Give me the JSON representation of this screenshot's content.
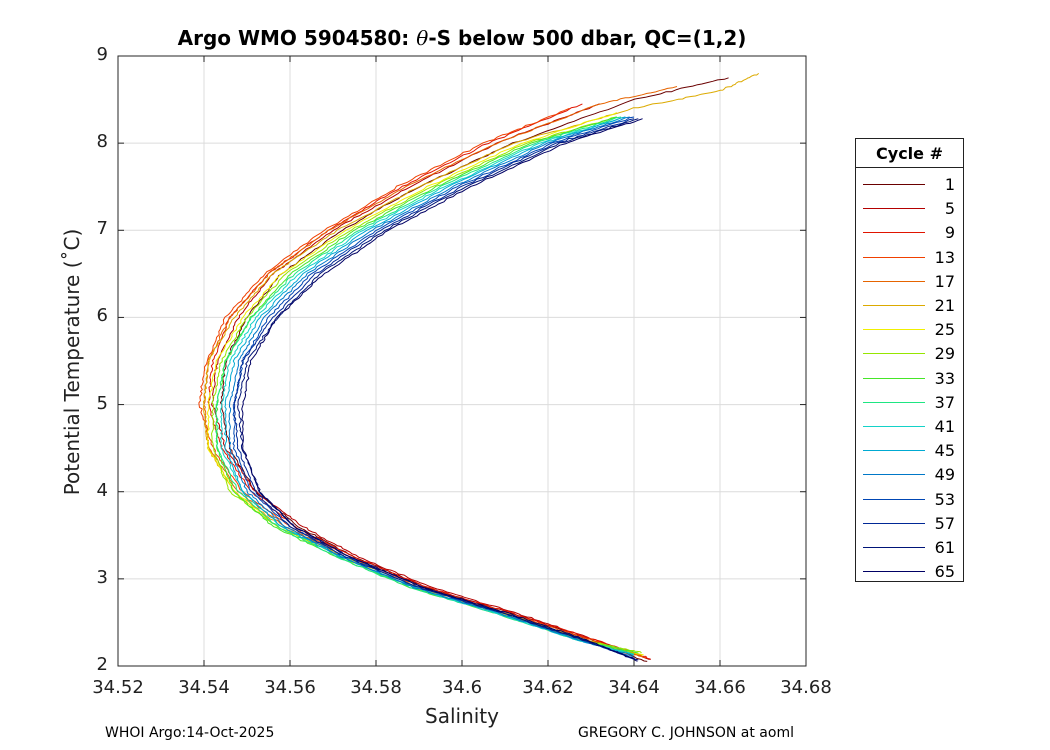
{
  "chart_data": {
    "type": "line",
    "title_prefix": "Argo WMO 5904580: ",
    "title_symbol": "θ",
    "title_suffix": "-S below 500 dbar,  QC=(1,2)",
    "xlabel": "Salinity",
    "ylabel": "Potential Temperature (˚C)",
    "xlim": [
      34.52,
      34.68
    ],
    "ylim": [
      2,
      9
    ],
    "xticks": [
      "34.52",
      "34.54",
      "34.56",
      "34.58",
      "34.6",
      "34.62",
      "34.64",
      "34.66",
      "34.68"
    ],
    "yticks": [
      "2",
      "3",
      "4",
      "5",
      "6",
      "7",
      "8",
      "9"
    ],
    "grid": true,
    "legend_title": "Cycle #",
    "legend_placement": "outside-right",
    "legend_entries": [
      "1",
      "5",
      "9",
      "13",
      "17",
      "21",
      "25",
      "29",
      "33",
      "37",
      "41",
      "45",
      "49",
      "53",
      "57",
      "61",
      "65"
    ],
    "legend_colors": [
      "#6a0000",
      "#b40000",
      "#e01400",
      "#f04000",
      "#e66400",
      "#dcaa00",
      "#f0f000",
      "#96e600",
      "#46e628",
      "#1ee682",
      "#14d2c8",
      "#00aad2",
      "#0078c8",
      "#0046b4",
      "#002896",
      "#001478",
      "#000064"
    ],
    "series_note": "",
    "series": [
      {
        "name": "1",
        "color": "#6a0000",
        "points": [
          [
            34.643,
            2.05
          ],
          [
            34.63,
            2.3
          ],
          [
            34.612,
            2.6
          ],
          [
            34.592,
            2.9
          ],
          [
            34.575,
            3.25
          ],
          [
            34.562,
            3.6
          ],
          [
            34.552,
            4.0
          ],
          [
            34.546,
            4.5
          ],
          [
            34.544,
            5.0
          ],
          [
            34.545,
            5.5
          ],
          [
            34.55,
            6.0
          ],
          [
            34.558,
            6.5
          ],
          [
            34.572,
            7.0
          ],
          [
            34.59,
            7.5
          ],
          [
            34.612,
            8.0
          ],
          [
            34.64,
            8.5
          ],
          [
            34.662,
            8.75
          ]
        ]
      },
      {
        "name": "5",
        "color": "#b40000",
        "points": [
          [
            34.644,
            2.07
          ],
          [
            34.631,
            2.3
          ],
          [
            34.613,
            2.6
          ],
          [
            34.593,
            2.9
          ],
          [
            34.576,
            3.25
          ],
          [
            34.563,
            3.6
          ],
          [
            34.552,
            4.0
          ],
          [
            34.545,
            4.5
          ],
          [
            34.542,
            5.0
          ],
          [
            34.543,
            5.5
          ],
          [
            34.548,
            6.0
          ],
          [
            34.556,
            6.5
          ],
          [
            34.57,
            7.0
          ],
          [
            34.588,
            7.5
          ],
          [
            34.608,
            8.0
          ],
          [
            34.632,
            8.45
          ]
        ]
      },
      {
        "name": "9",
        "color": "#e01400",
        "points": [
          [
            34.644,
            2.08
          ],
          [
            34.631,
            2.3
          ],
          [
            34.612,
            2.6
          ],
          [
            34.592,
            2.9
          ],
          [
            34.575,
            3.25
          ],
          [
            34.561,
            3.6
          ],
          [
            34.551,
            4.0
          ],
          [
            34.544,
            4.5
          ],
          [
            34.541,
            5.0
          ],
          [
            34.542,
            5.5
          ],
          [
            34.546,
            6.0
          ],
          [
            34.555,
            6.5
          ],
          [
            34.569,
            7.0
          ],
          [
            34.586,
            7.5
          ],
          [
            34.606,
            8.0
          ],
          [
            34.628,
            8.45
          ]
        ]
      },
      {
        "name": "13",
        "color": "#f04000",
        "points": [
          [
            34.643,
            2.09
          ],
          [
            34.63,
            2.3
          ],
          [
            34.611,
            2.6
          ],
          [
            34.591,
            2.9
          ],
          [
            34.574,
            3.25
          ],
          [
            34.56,
            3.6
          ],
          [
            34.549,
            4.0
          ],
          [
            34.542,
            4.5
          ],
          [
            34.539,
            5.0
          ],
          [
            34.54,
            5.4
          ],
          [
            34.545,
            6.0
          ],
          [
            34.554,
            6.5
          ],
          [
            34.568,
            7.0
          ],
          [
            34.585,
            7.5
          ],
          [
            34.605,
            8.0
          ],
          [
            34.625,
            8.4
          ]
        ]
      },
      {
        "name": "17",
        "color": "#e66400",
        "points": [
          [
            34.642,
            2.1
          ],
          [
            34.629,
            2.3
          ],
          [
            34.61,
            2.6
          ],
          [
            34.59,
            2.9
          ],
          [
            34.573,
            3.25
          ],
          [
            34.559,
            3.6
          ],
          [
            34.548,
            4.0
          ],
          [
            34.541,
            4.5
          ],
          [
            34.54,
            5.0
          ],
          [
            34.541,
            5.5
          ],
          [
            34.546,
            6.0
          ],
          [
            34.555,
            6.5
          ],
          [
            34.569,
            7.0
          ],
          [
            34.587,
            7.5
          ],
          [
            34.608,
            8.0
          ],
          [
            34.632,
            8.45
          ],
          [
            34.65,
            8.65
          ]
        ]
      },
      {
        "name": "21",
        "color": "#dcaa00",
        "points": [
          [
            34.642,
            2.12
          ],
          [
            34.629,
            2.3
          ],
          [
            34.61,
            2.6
          ],
          [
            34.59,
            2.9
          ],
          [
            34.573,
            3.25
          ],
          [
            34.558,
            3.6
          ],
          [
            34.547,
            4.0
          ],
          [
            34.541,
            4.5
          ],
          [
            34.54,
            5.0
          ],
          [
            34.541,
            5.5
          ],
          [
            34.547,
            6.0
          ],
          [
            34.556,
            6.5
          ],
          [
            34.571,
            7.0
          ],
          [
            34.59,
            7.5
          ],
          [
            34.612,
            8.0
          ],
          [
            34.64,
            8.4
          ],
          [
            34.66,
            8.6
          ],
          [
            34.669,
            8.8
          ]
        ]
      },
      {
        "name": "25",
        "color": "#f0f000",
        "points": [
          [
            34.642,
            2.13
          ],
          [
            34.628,
            2.3
          ],
          [
            34.609,
            2.6
          ],
          [
            34.589,
            2.9
          ],
          [
            34.572,
            3.25
          ],
          [
            34.557,
            3.6
          ],
          [
            34.547,
            4.0
          ],
          [
            34.541,
            4.5
          ],
          [
            34.541,
            5.0
          ],
          [
            34.543,
            5.5
          ],
          [
            34.549,
            6.0
          ],
          [
            34.558,
            6.5
          ],
          [
            34.573,
            7.0
          ],
          [
            34.592,
            7.5
          ],
          [
            34.614,
            8.0
          ],
          [
            34.636,
            8.35
          ]
        ]
      },
      {
        "name": "29",
        "color": "#96e600",
        "points": [
          [
            34.642,
            2.15
          ],
          [
            34.628,
            2.3
          ],
          [
            34.609,
            2.6
          ],
          [
            34.589,
            2.9
          ],
          [
            34.572,
            3.25
          ],
          [
            34.557,
            3.6
          ],
          [
            34.546,
            4.0
          ],
          [
            34.542,
            4.5
          ],
          [
            34.542,
            5.0
          ],
          [
            34.544,
            5.5
          ],
          [
            34.55,
            6.0
          ],
          [
            34.559,
            6.5
          ],
          [
            34.574,
            7.0
          ],
          [
            34.593,
            7.5
          ],
          [
            34.615,
            8.0
          ],
          [
            34.636,
            8.3
          ]
        ]
      },
      {
        "name": "33",
        "color": "#46e628",
        "points": [
          [
            34.641,
            2.15
          ],
          [
            34.627,
            2.3
          ],
          [
            34.608,
            2.6
          ],
          [
            34.588,
            2.9
          ],
          [
            34.571,
            3.25
          ],
          [
            34.556,
            3.6
          ],
          [
            34.547,
            4.0
          ],
          [
            34.543,
            4.5
          ],
          [
            34.543,
            5.0
          ],
          [
            34.545,
            5.5
          ],
          [
            34.551,
            6.0
          ],
          [
            34.56,
            6.5
          ],
          [
            34.575,
            7.0
          ],
          [
            34.594,
            7.5
          ],
          [
            34.616,
            8.0
          ],
          [
            34.636,
            8.3
          ]
        ]
      },
      {
        "name": "37",
        "color": "#1ee682",
        "points": [
          [
            34.64,
            2.14
          ],
          [
            34.627,
            2.3
          ],
          [
            34.608,
            2.6
          ],
          [
            34.588,
            2.9
          ],
          [
            34.571,
            3.25
          ],
          [
            34.557,
            3.6
          ],
          [
            34.548,
            4.0
          ],
          [
            34.543,
            4.5
          ],
          [
            34.543,
            5.0
          ],
          [
            34.545,
            5.5
          ],
          [
            34.551,
            6.0
          ],
          [
            34.561,
            6.5
          ],
          [
            34.576,
            7.0
          ],
          [
            34.595,
            7.5
          ],
          [
            34.617,
            8.0
          ],
          [
            34.637,
            8.3
          ]
        ]
      },
      {
        "name": "41",
        "color": "#14d2c8",
        "points": [
          [
            34.64,
            2.13
          ],
          [
            34.627,
            2.3
          ],
          [
            34.608,
            2.6
          ],
          [
            34.589,
            2.9
          ],
          [
            34.572,
            3.25
          ],
          [
            34.558,
            3.6
          ],
          [
            34.549,
            4.0
          ],
          [
            34.544,
            4.5
          ],
          [
            34.544,
            5.0
          ],
          [
            34.546,
            5.5
          ],
          [
            34.552,
            6.0
          ],
          [
            34.562,
            6.5
          ],
          [
            34.577,
            7.0
          ],
          [
            34.596,
            7.5
          ],
          [
            34.618,
            8.0
          ],
          [
            34.638,
            8.3
          ]
        ]
      },
      {
        "name": "45",
        "color": "#00aad2",
        "points": [
          [
            34.64,
            2.12
          ],
          [
            34.627,
            2.3
          ],
          [
            34.609,
            2.6
          ],
          [
            34.589,
            2.9
          ],
          [
            34.572,
            3.25
          ],
          [
            34.558,
            3.6
          ],
          [
            34.549,
            4.0
          ],
          [
            34.545,
            4.5
          ],
          [
            34.545,
            5.0
          ],
          [
            34.547,
            5.5
          ],
          [
            34.553,
            6.0
          ],
          [
            34.563,
            6.5
          ],
          [
            34.578,
            7.0
          ],
          [
            34.597,
            7.5
          ],
          [
            34.619,
            8.0
          ],
          [
            34.638,
            8.3
          ]
        ]
      },
      {
        "name": "49",
        "color": "#0078c8",
        "points": [
          [
            34.64,
            2.1
          ],
          [
            34.627,
            2.3
          ],
          [
            34.609,
            2.6
          ],
          [
            34.589,
            2.9
          ],
          [
            34.572,
            3.25
          ],
          [
            34.559,
            3.6
          ],
          [
            34.55,
            4.0
          ],
          [
            34.546,
            4.5
          ],
          [
            34.546,
            5.0
          ],
          [
            34.548,
            5.5
          ],
          [
            34.554,
            6.0
          ],
          [
            34.564,
            6.5
          ],
          [
            34.579,
            7.0
          ],
          [
            34.598,
            7.5
          ],
          [
            34.62,
            8.0
          ],
          [
            34.639,
            8.3
          ]
        ]
      },
      {
        "name": "53",
        "color": "#0046b4",
        "points": [
          [
            34.64,
            2.09
          ],
          [
            34.628,
            2.3
          ],
          [
            34.61,
            2.6
          ],
          [
            34.59,
            2.9
          ],
          [
            34.573,
            3.25
          ],
          [
            34.56,
            3.6
          ],
          [
            34.551,
            4.0
          ],
          [
            34.547,
            4.5
          ],
          [
            34.547,
            5.0
          ],
          [
            34.549,
            5.5
          ],
          [
            34.555,
            6.0
          ],
          [
            34.565,
            6.5
          ],
          [
            34.58,
            7.0
          ],
          [
            34.599,
            7.5
          ],
          [
            34.621,
            8.0
          ],
          [
            34.64,
            8.3
          ]
        ]
      },
      {
        "name": "57",
        "color": "#002896",
        "points": [
          [
            34.64,
            2.08
          ],
          [
            34.628,
            2.3
          ],
          [
            34.61,
            2.6
          ],
          [
            34.59,
            2.9
          ],
          [
            34.573,
            3.25
          ],
          [
            34.56,
            3.6
          ],
          [
            34.552,
            4.0
          ],
          [
            34.548,
            4.5
          ],
          [
            34.547,
            5.0
          ],
          [
            34.549,
            5.5
          ],
          [
            34.556,
            6.0
          ],
          [
            34.566,
            6.5
          ],
          [
            34.581,
            7.0
          ],
          [
            34.6,
            7.5
          ],
          [
            34.622,
            8.0
          ],
          [
            34.64,
            8.28
          ]
        ]
      },
      {
        "name": "61",
        "color": "#001478",
        "points": [
          [
            34.641,
            2.07
          ],
          [
            34.628,
            2.3
          ],
          [
            34.61,
            2.6
          ],
          [
            34.591,
            2.9
          ],
          [
            34.574,
            3.25
          ],
          [
            34.561,
            3.6
          ],
          [
            34.553,
            4.0
          ],
          [
            34.549,
            4.5
          ],
          [
            34.548,
            5.0
          ],
          [
            34.55,
            5.5
          ],
          [
            34.557,
            6.0
          ],
          [
            34.567,
            6.5
          ],
          [
            34.582,
            7.0
          ],
          [
            34.601,
            7.5
          ],
          [
            34.623,
            8.0
          ],
          [
            34.641,
            8.28
          ]
        ]
      },
      {
        "name": "65",
        "color": "#000064",
        "points": [
          [
            34.641,
            2.06
          ],
          [
            34.629,
            2.3
          ],
          [
            34.611,
            2.6
          ],
          [
            34.591,
            2.9
          ],
          [
            34.574,
            3.25
          ],
          [
            34.561,
            3.6
          ],
          [
            34.553,
            4.0
          ],
          [
            34.549,
            4.5
          ],
          [
            34.549,
            5.0
          ],
          [
            34.551,
            5.5
          ],
          [
            34.557,
            6.0
          ],
          [
            34.568,
            6.5
          ],
          [
            34.583,
            7.0
          ],
          [
            34.602,
            7.5
          ],
          [
            34.624,
            8.0
          ],
          [
            34.642,
            8.28
          ]
        ]
      }
    ]
  },
  "footer": {
    "left": "WHOI Argo:14-Oct-2025",
    "right": "GREGORY C. JOHNSON at aoml"
  }
}
